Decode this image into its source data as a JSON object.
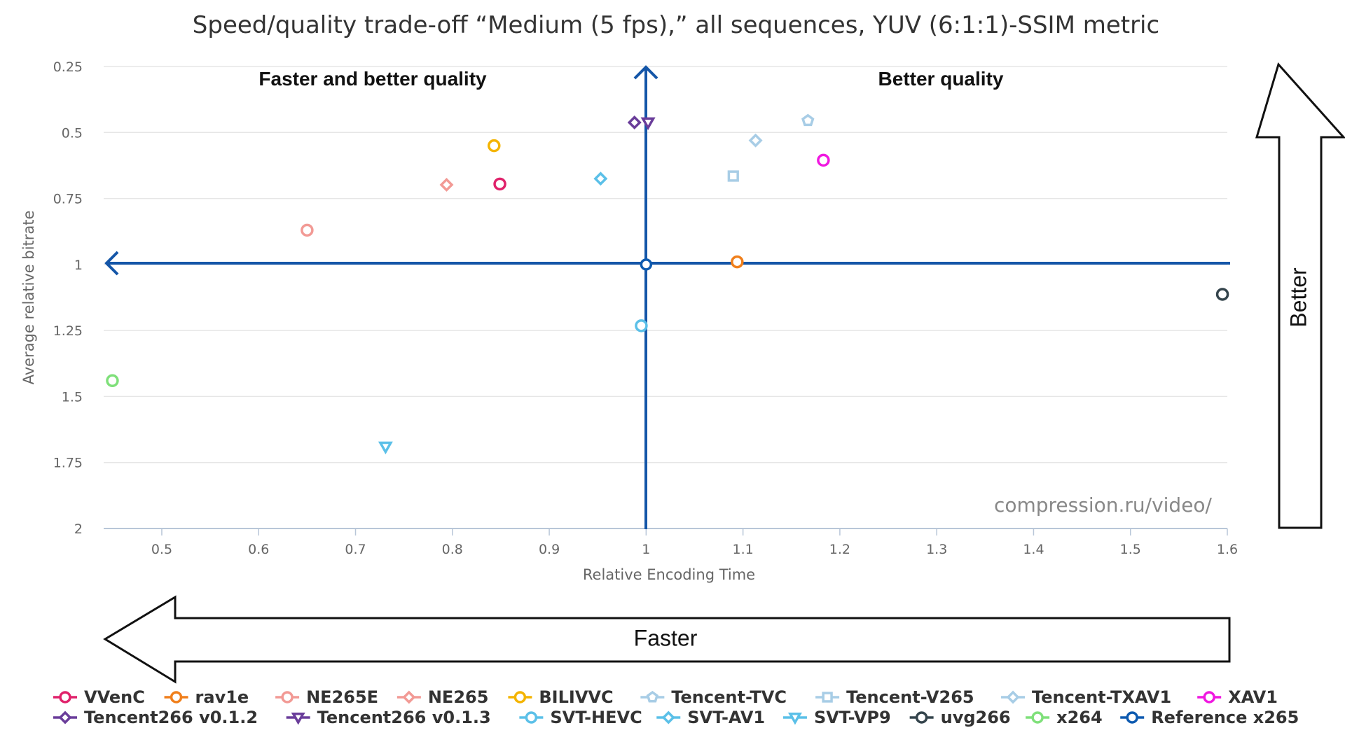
{
  "chart_data": {
    "type": "scatter",
    "title": "Speed/quality trade-off “Medium (5 fps),” all sequences, YUV (6:1:1)-SSIM metric",
    "xlabel": "Relative Encoding Time",
    "ylabel": "Average relative bitrate",
    "xlim": [
      0.44,
      1.6
    ],
    "ylim": [
      0.25,
      2
    ],
    "y_reversed": true,
    "x_ticks": [
      "0.5",
      "0.6",
      "0.7",
      "0.8",
      "0.9",
      "1",
      "1.1",
      "1.2",
      "1.3",
      "1.4",
      "1.5",
      "1.6"
    ],
    "y_ticks": [
      "0.25",
      "0.5",
      "0.75",
      "1",
      "1.25",
      "1.5",
      "1.75",
      "2"
    ],
    "grid": "horizontal",
    "legend_position": "bottom",
    "quadrant_labels": {
      "top_left": "Faster and better quality",
      "top_right": "Better quality"
    },
    "arrows": {
      "vertical": "Better",
      "horizontal": "Faster"
    },
    "credit": "compression.ru/video/",
    "series": [
      {
        "name": "VVenC",
        "color": "#e0226b",
        "marker": "circle",
        "x": 0.849,
        "y": 0.695
      },
      {
        "name": "rav1e",
        "color": "#f07f1b",
        "marker": "circle",
        "x": 1.094,
        "y": 0.99
      },
      {
        "name": "NE265E",
        "color": "#f29a95",
        "marker": "circle",
        "x": 0.65,
        "y": 0.87
      },
      {
        "name": "NE265",
        "color": "#f29a95",
        "marker": "diamond",
        "x": 0.794,
        "y": 0.698
      },
      {
        "name": "BILIVVC",
        "color": "#f4b400",
        "marker": "circle",
        "x": 0.843,
        "y": 0.55
      },
      {
        "name": "Tencent-TVC",
        "color": "#a8cde6",
        "marker": "pentagon",
        "x": 1.167,
        "y": 0.455
      },
      {
        "name": "Tencent-V265",
        "color": "#a8cde6",
        "marker": "square",
        "x": 1.09,
        "y": 0.665
      },
      {
        "name": "Tencent-TXAV1",
        "color": "#a8cde6",
        "marker": "diamond",
        "x": 1.113,
        "y": 0.53
      },
      {
        "name": "XAV1",
        "color": "#f018e0",
        "marker": "circle",
        "x": 1.183,
        "y": 0.605
      },
      {
        "name": "Tencent266 v0.1.2",
        "color": "#6a3d9a",
        "marker": "diamond",
        "x": 0.988,
        "y": 0.462
      },
      {
        "name": "Tencent266 v0.1.3",
        "color": "#6a3d9a",
        "marker": "triangle-down",
        "x": 1.002,
        "y": 0.462
      },
      {
        "name": "SVT-HEVC",
        "color": "#5bc0e8",
        "marker": "circle",
        "x": 0.995,
        "y": 1.232
      },
      {
        "name": "SVT-AV1",
        "color": "#5bc0e8",
        "marker": "diamond",
        "x": 0.953,
        "y": 0.675
      },
      {
        "name": "SVT-VP9",
        "color": "#5bc0e8",
        "marker": "triangle-down",
        "x": 0.731,
        "y": 1.69
      },
      {
        "name": "uvg266",
        "color": "#34444c",
        "marker": "circle",
        "x": 1.595,
        "y": 1.113
      },
      {
        "name": "x264",
        "color": "#7fe07a",
        "marker": "circle",
        "x": 0.449,
        "y": 1.44
      },
      {
        "name": "Reference x265",
        "color": "#0d5ab0",
        "marker": "circle",
        "x": 1.0,
        "y": 1.0
      }
    ]
  }
}
